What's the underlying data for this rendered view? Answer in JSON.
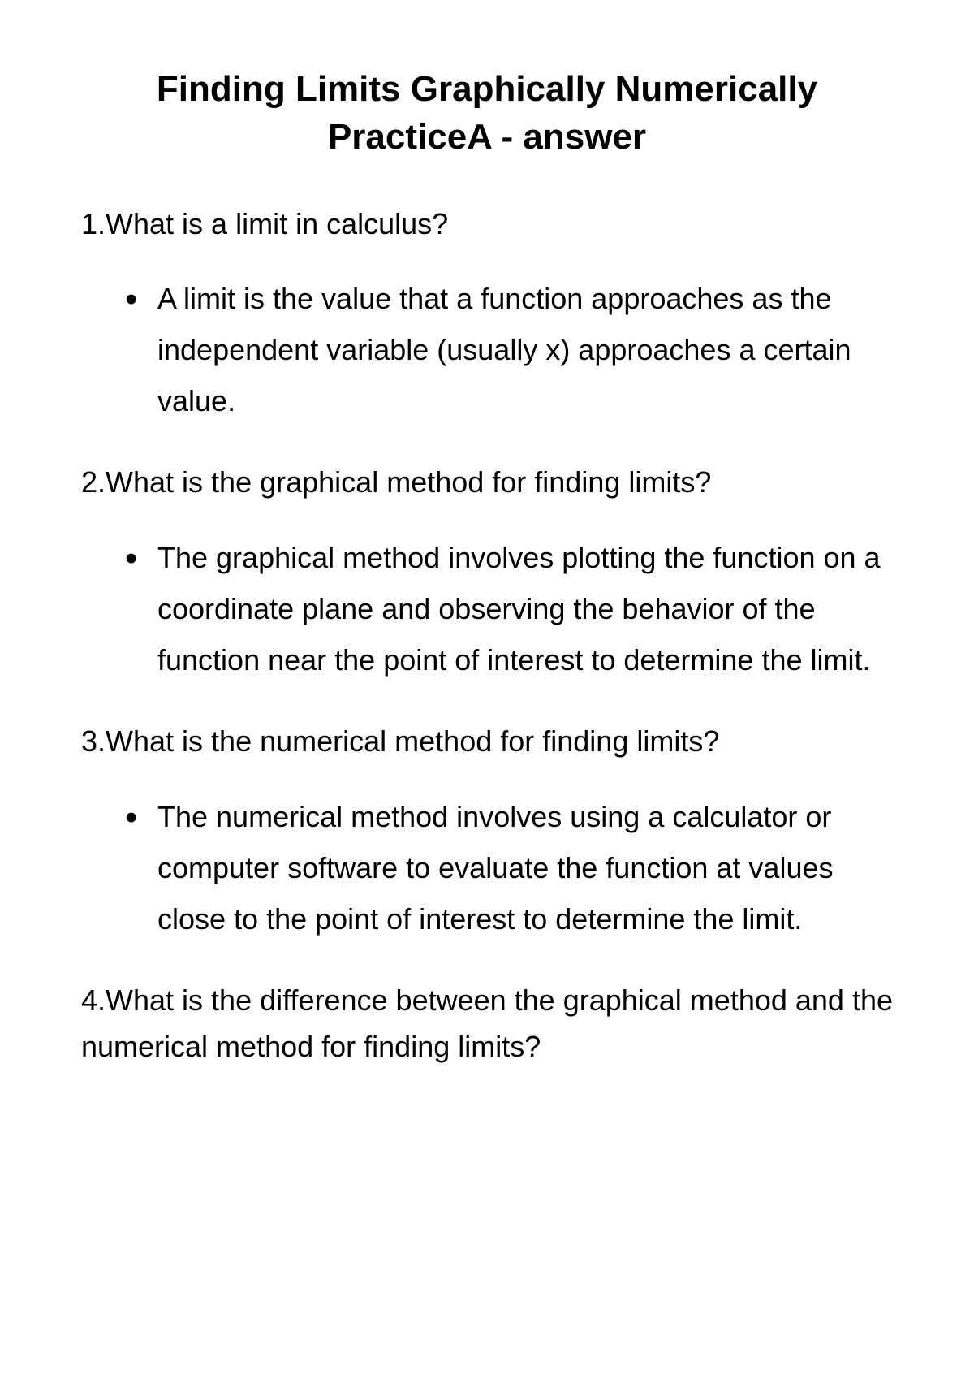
{
  "title": "Finding Limits Graphically Numerically PracticeA - answer",
  "questions": [
    {
      "number": "1.",
      "text": "What is a limit in calculus?",
      "answer": "A limit is the value that a function approaches as the independent variable (usually x) approaches a certain value."
    },
    {
      "number": "2.",
      "text": "What is the graphical method for finding limits?",
      "answer": "The graphical method involves plotting the function on a coordinate plane and observing the behavior of the function near the point of interest to determine the limit."
    },
    {
      "number": "3.",
      "text": "What is the numerical method for finding limits?",
      "answer": "The numerical method involves using a calculator or computer software to evaluate the function at values close to the point of interest to determine the limit."
    },
    {
      "number": "4.",
      "text": "What is the difference between the graphical method and the numerical method for finding limits?",
      "answer": null
    }
  ]
}
